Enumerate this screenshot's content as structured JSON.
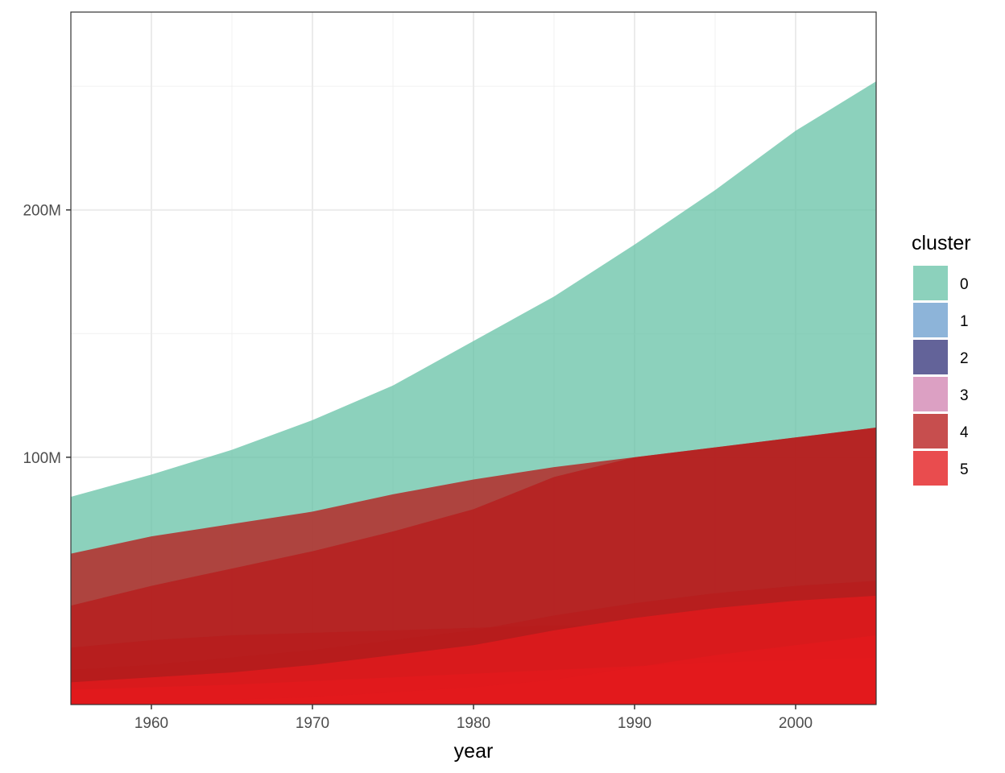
{
  "chart_data": {
    "type": "area",
    "title": "",
    "xlabel": "year",
    "ylabel": "",
    "xlim": [
      1955,
      2005
    ],
    "ylim": [
      0,
      280000000
    ],
    "x_ticks": [
      1960,
      1970,
      1980,
      1990,
      2000
    ],
    "y_ticks": [
      100000000,
      200000000
    ],
    "y_tick_labels": [
      "100M",
      "200M"
    ],
    "grid": true,
    "legend": {
      "title": "cluster",
      "position": "right"
    },
    "x": [
      1955,
      1960,
      1965,
      1970,
      1975,
      1980,
      1985,
      1990,
      1995,
      2000,
      2005
    ],
    "series": [
      {
        "name": "0",
        "color": "#66C2A5",
        "opacity": 0.75,
        "areas": [
          [
            84000000,
            93000000,
            103000000,
            115000000,
            129000000,
            147000000,
            165000000,
            186000000,
            208000000,
            232000000,
            252000000
          ]
        ]
      },
      {
        "name": "1",
        "color": "#8DB4D9",
        "opacity": 1.0,
        "areas": [
          [
            600000,
            700000,
            800000,
            1000000,
            1200000,
            1500000,
            1800000,
            2100000,
            2500000,
            2900000,
            3400000
          ]
        ]
      },
      {
        "name": "2",
        "color": "#5B5B94",
        "opacity": 0.95,
        "areas": [
          [
            500000,
            600000,
            700000,
            900000,
            1000000,
            1200000,
            1400000,
            1700000,
            2000000,
            2300000,
            2600000
          ]
        ]
      },
      {
        "name": "3",
        "color": "#D68FB8",
        "opacity": 0.85,
        "areas": [
          [
            1000000,
            1500000,
            2000000,
            2800000,
            3800000,
            5000000,
            6500000,
            8000000,
            10000000,
            12000000,
            14000000
          ],
          [
            300000,
            400000,
            500000,
            700000,
            900000,
            1100000,
            1400000,
            1700000,
            2100000,
            2600000,
            3200000
          ]
        ]
      },
      {
        "name": "4",
        "color": "#B71C1C",
        "opacity": 0.78,
        "areas": [
          [
            61000000,
            68000000,
            73000000,
            78000000,
            85000000,
            91000000,
            96000000,
            100000000,
            104000000,
            108000000,
            112000000
          ],
          [
            40000000,
            48000000,
            55000000,
            62000000,
            70000000,
            79000000,
            92000000,
            100000000,
            104000000,
            108000000,
            112000000
          ],
          [
            23000000,
            26000000,
            28000000,
            29000000,
            30000000,
            31000000,
            32000000,
            32000000,
            32000000,
            32000000,
            32000000
          ],
          [
            14000000,
            16000000,
            19000000,
            22000000,
            26000000,
            30000000,
            36000000,
            41000000,
            45000000,
            48000000,
            50000000
          ]
        ]
      },
      {
        "name": "5",
        "color": "#E31A1C",
        "opacity": 0.78,
        "areas": [
          [
            9000000,
            11000000,
            13000000,
            16000000,
            20000000,
            24000000,
            30000000,
            35000000,
            39000000,
            42000000,
            44000000
          ],
          [
            6000000,
            7000000,
            8000000,
            9500000,
            11000000,
            12500000,
            14000000,
            15500000,
            17000000,
            18000000,
            19000000
          ],
          [
            500000,
            1000000,
            2000000,
            3000000,
            5000000,
            7000000,
            10000000,
            15000000,
            20000000,
            24000000,
            28000000
          ]
        ]
      }
    ]
  }
}
